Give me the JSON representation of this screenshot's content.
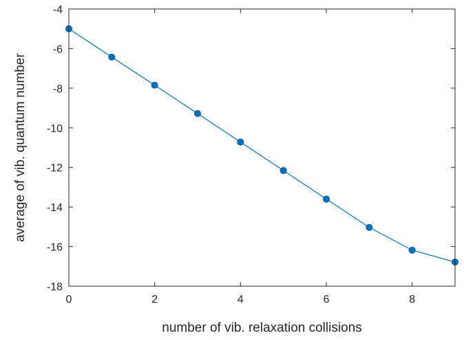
{
  "chart_data": {
    "type": "line",
    "title": "",
    "xlabel": "number of vib. relaxation collisions",
    "ylabel": "average of vib. quantum number",
    "xlim": [
      0,
      9
    ],
    "ylim": [
      -18,
      -4
    ],
    "xticks": [
      0,
      2,
      4,
      6,
      8
    ],
    "yticks": [
      -4,
      -6,
      -8,
      -10,
      -12,
      -14,
      -16,
      -18
    ],
    "grid": false,
    "box": true,
    "series": [
      {
        "x": [
          0,
          1,
          2,
          3,
          4,
          5,
          6,
          7,
          8,
          9
        ],
        "y": [
          -5.0,
          -6.43,
          -7.85,
          -9.28,
          -10.72,
          -12.16,
          -13.6,
          -15.03,
          -16.18,
          -16.78
        ],
        "color": "#0072BD",
        "marker": "circle"
      }
    ]
  }
}
